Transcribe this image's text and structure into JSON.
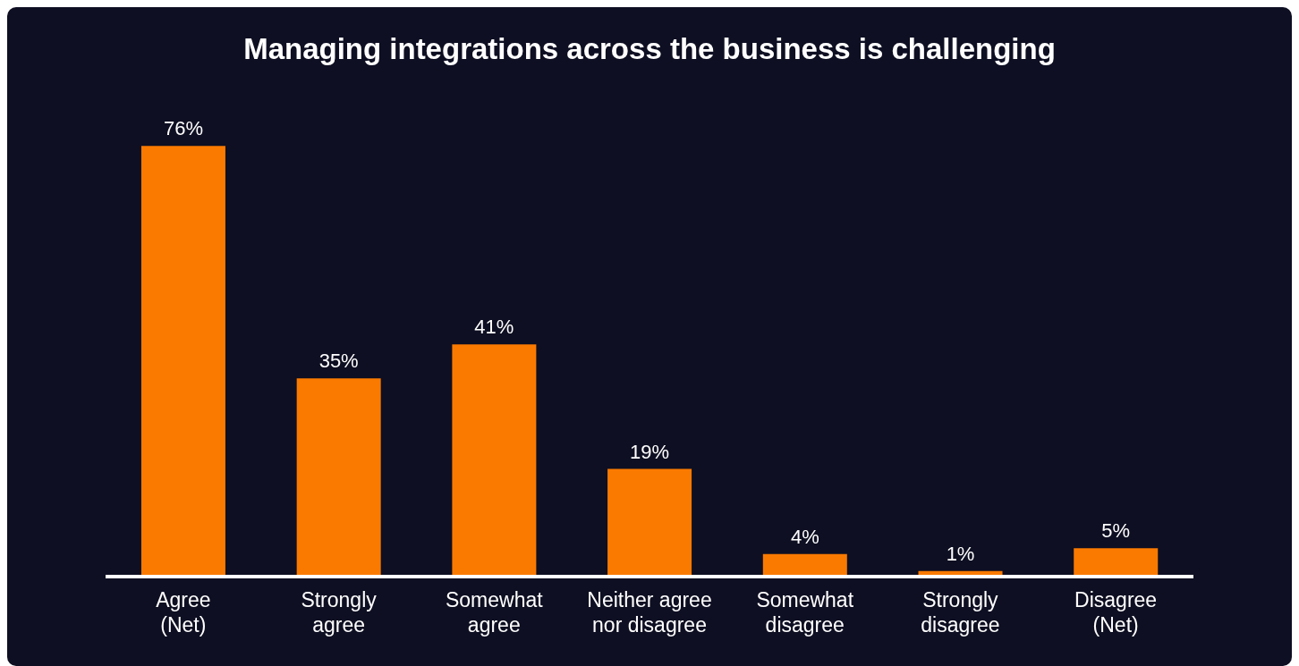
{
  "chart_data": {
    "type": "bar",
    "title": "Managing integrations across the business is challenging",
    "categories": [
      "Agree (Net)",
      "Strongly agree",
      "Somewhat agree",
      "Neither agree nor disagree",
      "Somewhat disagree",
      "Strongly disagree",
      "Disagree (Net)"
    ],
    "values": [
      76,
      35,
      41,
      19,
      4,
      1,
      5
    ],
    "value_labels": [
      "76%",
      "35%",
      "41%",
      "19%",
      "4%",
      "1%",
      "5%"
    ],
    "color": "#fa7a00",
    "grid": false,
    "legend": false
  }
}
